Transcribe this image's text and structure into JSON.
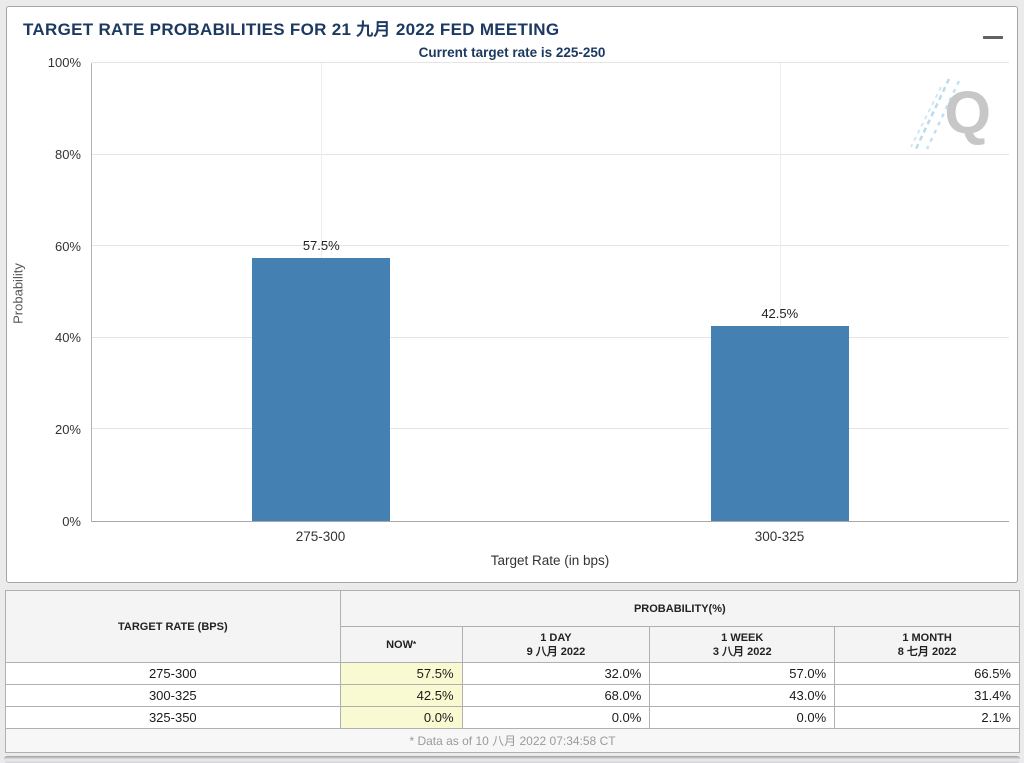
{
  "header": {
    "title": "TARGET RATE PROBABILITIES FOR 21 九月 2022 FED MEETING",
    "subtitle": "Current target rate is 225-250"
  },
  "chart_data": {
    "type": "bar",
    "title": "TARGET RATE PROBABILITIES FOR 21 九月 2022 FED MEETING",
    "subtitle": "Current target rate is 225-250",
    "xlabel": "Target Rate (in bps)",
    "ylabel": "Probability",
    "categories": [
      "275-300",
      "300-325"
    ],
    "values": [
      57.5,
      42.5
    ],
    "value_labels": [
      "57.5%",
      "42.5%"
    ],
    "ylim": [
      0,
      100
    ],
    "yticks": [
      "0%",
      "20%",
      "40%",
      "60%",
      "80%",
      "100%"
    ],
    "grid": true,
    "legend": "none",
    "bar_color": "#4580b2",
    "watermark_letter": "Q"
  },
  "table": {
    "headers": {
      "target_rate": "TARGET RATE (BPS)",
      "probability": "PROBABILITY(%)",
      "now": "NOW",
      "now_note_marker": "*",
      "day": {
        "line1": "1 DAY",
        "line2": "9 八月 2022"
      },
      "week": {
        "line1": "1 WEEK",
        "line2": "3 八月 2022"
      },
      "month": {
        "line1": "1 MONTH",
        "line2": "8 七月 2022"
      }
    },
    "rows": [
      {
        "rate": "275-300",
        "now": "57.5%",
        "day": "32.0%",
        "week": "57.0%",
        "month": "66.5%"
      },
      {
        "rate": "300-325",
        "now": "42.5%",
        "day": "68.0%",
        "week": "43.0%",
        "month": "31.4%"
      },
      {
        "rate": "325-350",
        "now": "0.0%",
        "day": "0.0%",
        "week": "0.0%",
        "month": "2.1%"
      }
    ],
    "footnote": "* Data as of 10 八月 2022 07:34:58 CT",
    "highlight_color": "#fafad2",
    "accent_color": "#1c3961"
  }
}
